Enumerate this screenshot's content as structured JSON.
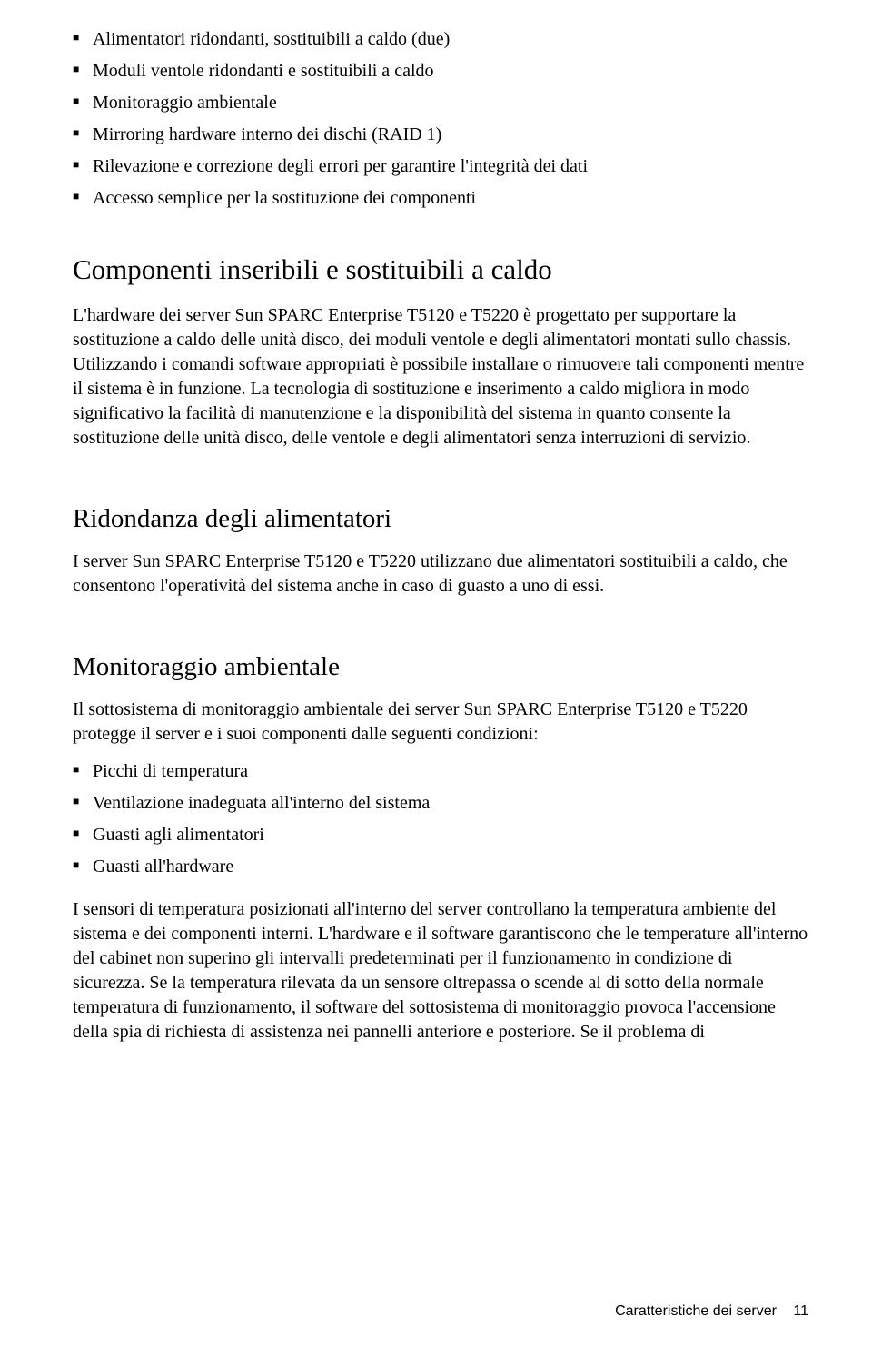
{
  "topList": {
    "items": [
      "Alimentatori ridondanti, sostituibili a caldo (due)",
      "Moduli ventole ridondanti e sostituibili a caldo",
      "Monitoraggio ambientale",
      "Mirroring hardware interno dei dischi (RAID 1)",
      "Rilevazione e correzione degli errori per garantire l'integrità dei dati",
      "Accesso semplice per la sostituzione dei componenti"
    ]
  },
  "section1": {
    "heading": "Componenti inseribili e sostituibili a caldo",
    "para": "L'hardware dei server Sun SPARC Enterprise T5120 e T5220 è progettato per supportare la sostituzione a caldo delle unità disco, dei moduli ventole e degli alimentatori montati sullo chassis. Utilizzando i comandi software appropriati è possibile installare o rimuovere tali componenti mentre il sistema è in funzione. La tecnologia di sostituzione e inserimento a caldo migliora in modo significativo la facilità di manutenzione e la disponibilità del sistema in quanto consente la sostituzione delle unità disco, delle ventole e degli alimentatori senza interruzioni di servizio."
  },
  "section2": {
    "heading": "Ridondanza degli alimentatori",
    "para": "I server Sun SPARC Enterprise T5120 e T5220 utilizzano due alimentatori sostituibili a caldo, che consentono l'operatività del sistema anche in caso di guasto a uno di essi."
  },
  "section3": {
    "heading": "Monitoraggio ambientale",
    "intro": "Il sottosistema di monitoraggio ambientale dei server Sun SPARC Enterprise T5120 e T5220 protegge il server e i suoi componenti dalle seguenti condizioni:",
    "items": [
      "Picchi di temperatura",
      "Ventilazione inadeguata all'interno del sistema",
      "Guasti agli alimentatori",
      "Guasti all'hardware"
    ],
    "para2": "I sensori di temperatura posizionati all'interno del server controllano la temperatura ambiente del sistema e dei componenti interni. L'hardware e il software garantiscono che le temperature all'interno del cabinet non superino gli intervalli predeterminati per il funzionamento in condizione di sicurezza. Se la temperatura rilevata da un sensore oltrepassa o scende al di sotto della normale temperatura di funzionamento, il software del sottosistema di monitoraggio provoca l'accensione della spia di richiesta di assistenza nei pannelli anteriore e posteriore. Se il problema di"
  },
  "footer": {
    "label": "Caratteristiche dei server",
    "pageNumber": "11"
  }
}
